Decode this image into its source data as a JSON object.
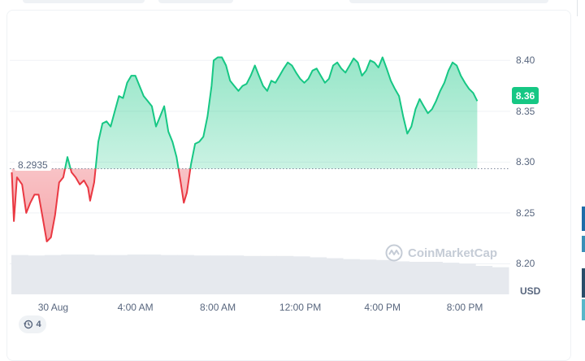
{
  "currency": "USD",
  "watermark": "CoinMarketCap",
  "annotations_badge": {
    "icon": "history-icon",
    "count": "4"
  },
  "reference": {
    "label": "8.2935",
    "value": 8.2935
  },
  "current": {
    "label": "8.36",
    "value": 8.36
  },
  "colors": {
    "up": "#16c784",
    "down": "#ea3943",
    "grid": "#eff2f5",
    "volume": "#e6e9ee"
  },
  "chart_data": {
    "type": "line",
    "title": "",
    "xlabel": "",
    "ylabel": "USD",
    "x_unit": "hours",
    "ylim": [
      8.17,
      8.445
    ],
    "xlim": [
      -2.1,
      22.2
    ],
    "grid": true,
    "x_ticks": [
      {
        "x": 0,
        "label": "30 Aug"
      },
      {
        "x": 4,
        "label": "4:00 AM"
      },
      {
        "x": 8,
        "label": "8:00 AM"
      },
      {
        "x": 12,
        "label": "12:00 PM"
      },
      {
        "x": 16,
        "label": "4:00 PM"
      },
      {
        "x": 20,
        "label": "8:00 PM"
      }
    ],
    "y_ticks": [
      {
        "y": 8.4,
        "label": "8.40"
      },
      {
        "y": 8.35,
        "label": "8.35"
      },
      {
        "y": 8.3,
        "label": "8.30"
      },
      {
        "y": 8.25,
        "label": "8.25"
      },
      {
        "y": 8.2,
        "label": "8.20"
      }
    ],
    "series": [
      {
        "values": [
          [
            -2.0,
            8.29
          ],
          [
            -1.9,
            8.242
          ],
          [
            -1.75,
            8.285
          ],
          [
            -1.5,
            8.278
          ],
          [
            -1.3,
            8.25
          ],
          [
            -1.1,
            8.26
          ],
          [
            -0.9,
            8.268
          ],
          [
            -0.7,
            8.268
          ],
          [
            -0.5,
            8.245
          ],
          [
            -0.3,
            8.222
          ],
          [
            -0.1,
            8.226
          ],
          [
            0.1,
            8.248
          ],
          [
            0.3,
            8.28
          ],
          [
            0.5,
            8.285
          ],
          [
            0.7,
            8.305
          ],
          [
            0.9,
            8.29
          ],
          [
            1.1,
            8.285
          ],
          [
            1.3,
            8.278
          ],
          [
            1.5,
            8.282
          ],
          [
            1.7,
            8.275
          ],
          [
            1.8,
            8.262
          ],
          [
            2.0,
            8.28
          ],
          [
            2.2,
            8.32
          ],
          [
            2.4,
            8.338
          ],
          [
            2.6,
            8.34
          ],
          [
            2.8,
            8.335
          ],
          [
            3.0,
            8.35
          ],
          [
            3.2,
            8.365
          ],
          [
            3.4,
            8.363
          ],
          [
            3.6,
            8.378
          ],
          [
            3.8,
            8.385
          ],
          [
            4.0,
            8.385
          ],
          [
            4.2,
            8.375
          ],
          [
            4.4,
            8.365
          ],
          [
            4.6,
            8.36
          ],
          [
            4.8,
            8.355
          ],
          [
            5.0,
            8.335
          ],
          [
            5.2,
            8.345
          ],
          [
            5.4,
            8.355
          ],
          [
            5.6,
            8.33
          ],
          [
            5.8,
            8.32
          ],
          [
            6.0,
            8.305
          ],
          [
            6.2,
            8.28
          ],
          [
            6.35,
            8.26
          ],
          [
            6.5,
            8.27
          ],
          [
            6.7,
            8.298
          ],
          [
            6.9,
            8.318
          ],
          [
            7.1,
            8.32
          ],
          [
            7.3,
            8.325
          ],
          [
            7.5,
            8.345
          ],
          [
            7.7,
            8.375
          ],
          [
            7.8,
            8.4
          ],
          [
            8.0,
            8.403
          ],
          [
            8.2,
            8.403
          ],
          [
            8.4,
            8.395
          ],
          [
            8.6,
            8.38
          ],
          [
            8.8,
            8.375
          ],
          [
            9.0,
            8.37
          ],
          [
            9.2,
            8.375
          ],
          [
            9.4,
            8.377
          ],
          [
            9.6,
            8.385
          ],
          [
            9.8,
            8.395
          ],
          [
            10.0,
            8.385
          ],
          [
            10.2,
            8.375
          ],
          [
            10.4,
            8.37
          ],
          [
            10.6,
            8.38
          ],
          [
            10.8,
            8.378
          ],
          [
            11.0,
            8.385
          ],
          [
            11.2,
            8.392
          ],
          [
            11.4,
            8.398
          ],
          [
            11.6,
            8.395
          ],
          [
            11.8,
            8.388
          ],
          [
            12.0,
            8.382
          ],
          [
            12.2,
            8.378
          ],
          [
            12.4,
            8.382
          ],
          [
            12.6,
            8.39
          ],
          [
            12.8,
            8.392
          ],
          [
            13.0,
            8.385
          ],
          [
            13.2,
            8.378
          ],
          [
            13.4,
            8.382
          ],
          [
            13.6,
            8.395
          ],
          [
            13.8,
            8.398
          ],
          [
            14.0,
            8.392
          ],
          [
            14.2,
            8.388
          ],
          [
            14.4,
            8.395
          ],
          [
            14.6,
            8.402
          ],
          [
            14.8,
            8.398
          ],
          [
            15.0,
            8.385
          ],
          [
            15.2,
            8.39
          ],
          [
            15.4,
            8.4
          ],
          [
            15.6,
            8.398
          ],
          [
            15.8,
            8.393
          ],
          [
            16.0,
            8.403
          ],
          [
            16.2,
            8.392
          ],
          [
            16.4,
            8.38
          ],
          [
            16.6,
            8.372
          ],
          [
            16.8,
            8.365
          ],
          [
            17.0,
            8.345
          ],
          [
            17.2,
            8.328
          ],
          [
            17.4,
            8.335
          ],
          [
            17.6,
            8.352
          ],
          [
            17.8,
            8.362
          ],
          [
            18.0,
            8.355
          ],
          [
            18.2,
            8.348
          ],
          [
            18.4,
            8.352
          ],
          [
            18.6,
            8.36
          ],
          [
            18.8,
            8.37
          ],
          [
            19.0,
            8.378
          ],
          [
            19.2,
            8.39
          ],
          [
            19.4,
            8.398
          ],
          [
            19.6,
            8.395
          ],
          [
            19.8,
            8.385
          ],
          [
            20.0,
            8.378
          ],
          [
            20.2,
            8.372
          ],
          [
            20.4,
            8.368
          ],
          [
            20.6,
            8.36
          ]
        ]
      }
    ],
    "volume": [
      0.87,
      0.86,
      0.87,
      0.88,
      0.88,
      0.87,
      0.87,
      0.88,
      0.88,
      0.87,
      0.87,
      0.86,
      0.86,
      0.86,
      0.85,
      0.85,
      0.85,
      0.84,
      0.82,
      0.8,
      0.78,
      0.77,
      0.76,
      0.73,
      0.72,
      0.72,
      0.7,
      0.68,
      0.63,
      0.6
    ]
  }
}
